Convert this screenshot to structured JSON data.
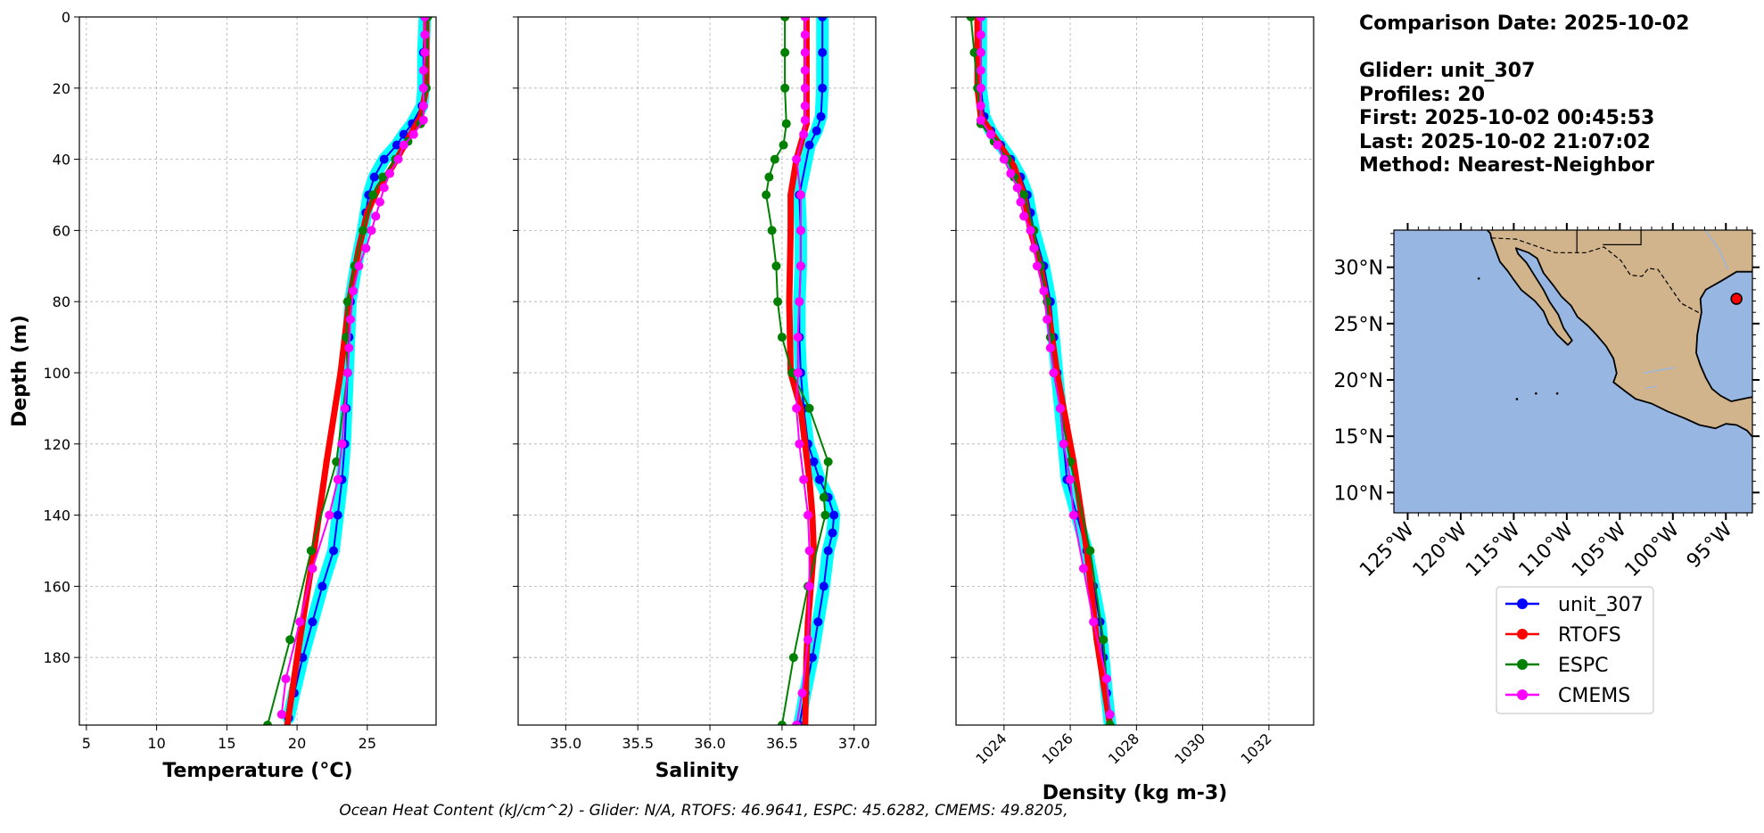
{
  "info": {
    "comparison": "Comparison Date: 2025-10-02",
    "glider": "Glider: unit_307",
    "profiles": "Profiles: 20",
    "first": "First: 2025-10-02 00:45:53",
    "last": "Last: 2025-10-02 21:07:02",
    "method": "Method: Nearest-Neighbor"
  },
  "footer": "Ocean Heat Content (kJ/cm^2) - Glider: N/A,  RTOFS: 46.9641,  ESPC: 45.6282,  CMEMS: 49.8205,",
  "colors": {
    "glider": "#0000ff",
    "glider_band": "#00ffff",
    "rtofs": "#ff0000",
    "espc": "#008000",
    "cmems": "#ff00ff",
    "ocean": "#97b6e1",
    "land": "#d2b48c"
  },
  "chart_data": [
    {
      "type": "line",
      "xlabel": "Temperature (°C)",
      "ylabel": "Depth (m)",
      "xlim": [
        4.5,
        29.9
      ],
      "ylim": [
        199,
        0
      ],
      "xticks": [
        5,
        10,
        15,
        20,
        25
      ],
      "yticks": [
        0,
        20,
        40,
        60,
        80,
        100,
        120,
        140,
        160,
        180
      ],
      "grid": true,
      "series": [
        {
          "name": "unit_307",
          "depth": [
            0,
            10,
            20,
            25,
            30,
            33,
            36,
            40,
            45,
            50,
            55,
            60,
            70,
            80,
            90,
            100,
            110,
            120,
            130,
            140,
            150,
            160,
            170,
            180,
            190,
            197
          ],
          "values": [
            29.1,
            29.0,
            29.0,
            28.9,
            28.2,
            27.6,
            27.1,
            26.2,
            25.5,
            25.1,
            24.9,
            24.7,
            24.2,
            23.8,
            23.7,
            23.6,
            23.5,
            23.4,
            23.2,
            22.9,
            22.6,
            21.8,
            21.1,
            20.4,
            19.8,
            19.4
          ]
        },
        {
          "name": "RTOFS",
          "depth": [
            0,
            20,
            28,
            35,
            42,
            48,
            55,
            65,
            80,
            100,
            125,
            150,
            175,
            199
          ],
          "values": [
            29.2,
            29.2,
            28.8,
            27.8,
            26.8,
            25.8,
            25.0,
            24.4,
            23.7,
            23.1,
            22.1,
            21.2,
            20.2,
            19.3
          ]
        },
        {
          "name": "ESPC",
          "depth": [
            0,
            20,
            30,
            35,
            40,
            45,
            50,
            60,
            70,
            80,
            90,
            100,
            125,
            150,
            175,
            199
          ],
          "values": [
            29.3,
            29.2,
            28.8,
            27.9,
            27.0,
            26.1,
            25.4,
            24.7,
            24.1,
            23.6,
            23.5,
            23.6,
            22.8,
            21.0,
            19.5,
            17.9
          ]
        },
        {
          "name": "CMEMS",
          "depth": [
            0,
            5,
            10,
            15,
            20,
            25,
            29,
            33,
            36,
            40,
            44,
            48,
            52,
            56,
            60,
            65,
            70,
            77,
            85,
            93,
            100,
            110,
            120,
            130,
            140,
            155,
            170,
            186,
            196
          ],
          "values": [
            29.1,
            29.1,
            29.1,
            29.0,
            29.0,
            29.0,
            29.0,
            28.3,
            27.6,
            27.2,
            26.6,
            26.2,
            25.9,
            25.6,
            25.3,
            24.9,
            24.4,
            24.0,
            23.8,
            23.7,
            23.6,
            23.4,
            23.2,
            22.9,
            22.3,
            21.1,
            20.2,
            19.2,
            18.9
          ]
        }
      ]
    },
    {
      "type": "line",
      "xlabel": "Salinity",
      "ylabel": "",
      "xlim": [
        34.67,
        37.15
      ],
      "ylim": [
        199,
        0
      ],
      "xticks": [
        35.0,
        35.5,
        36.0,
        36.5,
        37.0
      ],
      "grid": true,
      "series": [
        {
          "name": "unit_307",
          "depth": [
            0,
            10,
            20,
            28,
            32,
            36,
            50,
            60,
            70,
            80,
            90,
            100,
            110,
            120,
            125,
            130,
            135,
            140,
            145,
            150,
            160,
            170,
            180,
            190,
            199
          ],
          "values": [
            36.78,
            36.78,
            36.78,
            36.77,
            36.74,
            36.69,
            36.62,
            36.63,
            36.63,
            36.62,
            36.62,
            36.63,
            36.65,
            36.68,
            36.72,
            36.76,
            36.82,
            36.86,
            36.85,
            36.82,
            36.79,
            36.75,
            36.71,
            36.66,
            36.62
          ]
        },
        {
          "name": "RTOFS",
          "depth": [
            0,
            20,
            30,
            40,
            50,
            60,
            80,
            100,
            110,
            120,
            130,
            140,
            150,
            160,
            170,
            180,
            199
          ],
          "values": [
            36.67,
            36.67,
            36.67,
            36.6,
            36.56,
            36.56,
            36.55,
            36.56,
            36.63,
            36.66,
            36.69,
            36.71,
            36.72,
            36.7,
            36.68,
            36.67,
            36.66
          ]
        },
        {
          "name": "ESPC",
          "depth": [
            0,
            10,
            20,
            30,
            36,
            40,
            45,
            50,
            60,
            70,
            80,
            90,
            100,
            110,
            125,
            135,
            140,
            160,
            180,
            199
          ],
          "values": [
            36.52,
            36.52,
            36.52,
            36.53,
            36.51,
            36.45,
            36.41,
            36.39,
            36.43,
            36.46,
            36.47,
            36.5,
            36.57,
            36.69,
            36.82,
            36.79,
            36.8,
            36.68,
            36.58,
            36.5
          ]
        },
        {
          "name": "CMEMS",
          "depth": [
            0,
            5,
            10,
            15,
            20,
            25,
            29,
            33,
            40,
            50,
            60,
            70,
            80,
            90,
            100,
            110,
            120,
            130,
            140,
            150,
            160,
            175,
            190,
            199
          ],
          "values": [
            36.66,
            36.66,
            36.66,
            36.66,
            36.66,
            36.66,
            36.66,
            36.65,
            36.6,
            36.63,
            36.63,
            36.63,
            36.62,
            36.61,
            36.61,
            36.6,
            36.62,
            36.65,
            36.68,
            36.69,
            36.69,
            36.68,
            36.64,
            36.6
          ]
        }
      ]
    },
    {
      "type": "line",
      "xlabel": "Density (kg m-3)",
      "ylabel": "",
      "xlim": [
        1022.55,
        1033.35
      ],
      "ylim": [
        199,
        0
      ],
      "xticks": [
        1024,
        1026,
        1028,
        1030,
        1032
      ],
      "grid": true,
      "series": [
        {
          "name": "unit_307",
          "depth": [
            0,
            10,
            20,
            28,
            32,
            36,
            40,
            45,
            50,
            55,
            60,
            70,
            80,
            90,
            100,
            110,
            120,
            130,
            140,
            150,
            160,
            170,
            180,
            190,
            199
          ],
          "values": [
            1023.3,
            1023.3,
            1023.3,
            1023.4,
            1023.6,
            1023.9,
            1024.2,
            1024.5,
            1024.7,
            1024.8,
            1024.9,
            1025.2,
            1025.4,
            1025.5,
            1025.6,
            1025.7,
            1025.8,
            1025.9,
            1026.2,
            1026.5,
            1026.7,
            1026.9,
            1027.0,
            1027.1,
            1027.2
          ]
        },
        {
          "name": "RTOFS",
          "depth": [
            0,
            20,
            28,
            35,
            42,
            50,
            60,
            70,
            80,
            100,
            125,
            150,
            175,
            199
          ],
          "values": [
            1023.2,
            1023.2,
            1023.3,
            1023.8,
            1024.3,
            1024.6,
            1024.8,
            1025.1,
            1025.3,
            1025.6,
            1026.1,
            1026.5,
            1026.8,
            1027.2
          ]
        },
        {
          "name": "ESPC",
          "depth": [
            0,
            10,
            20,
            30,
            35,
            40,
            45,
            50,
            60,
            70,
            80,
            90,
            100,
            125,
            150,
            175,
            199
          ],
          "values": [
            1023.0,
            1023.1,
            1023.2,
            1023.3,
            1023.7,
            1024.1,
            1024.3,
            1024.6,
            1024.9,
            1025.1,
            1025.3,
            1025.4,
            1025.5,
            1026.0,
            1026.6,
            1027.0,
            1027.2
          ]
        },
        {
          "name": "CMEMS",
          "depth": [
            0,
            5,
            10,
            15,
            20,
            25,
            29,
            33,
            36,
            40,
            44,
            48,
            52,
            56,
            60,
            65,
            70,
            77,
            85,
            93,
            100,
            110,
            120,
            130,
            140,
            155,
            170,
            186,
            196
          ],
          "values": [
            1023.3,
            1023.3,
            1023.3,
            1023.3,
            1023.3,
            1023.3,
            1023.3,
            1023.6,
            1023.8,
            1024.0,
            1024.2,
            1024.4,
            1024.5,
            1024.6,
            1024.8,
            1024.9,
            1025.0,
            1025.2,
            1025.3,
            1025.4,
            1025.5,
            1025.7,
            1025.8,
            1026.0,
            1026.1,
            1026.4,
            1026.7,
            1027.1,
            1027.2
          ]
        }
      ]
    }
  ],
  "map": {
    "lat_labels": [
      "30°N",
      "25°N",
      "20°N",
      "15°N",
      "10°N"
    ],
    "lon_labels": [
      "125°W",
      "120°W",
      "115°W",
      "110°W",
      "105°W",
      "100°W",
      "95°W"
    ],
    "glider_marker": {
      "lon": -94.0,
      "lat": 27.2
    }
  },
  "legend": [
    "unit_307",
    "RTOFS",
    "ESPC",
    "CMEMS"
  ]
}
